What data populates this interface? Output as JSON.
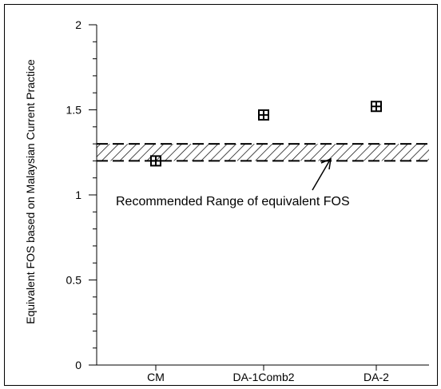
{
  "chart_data": {
    "type": "scatter",
    "title": "",
    "xlabel": "",
    "ylabel": "Equivalent FOS based on Malaysian Current Practice",
    "categories": [
      "CM",
      "DA-1Comb2",
      "DA-2"
    ],
    "values": [
      1.2,
      1.47,
      1.52
    ],
    "ylim": [
      0,
      2
    ],
    "yticks": [
      "0",
      "0.5",
      "1",
      "1.5",
      "2"
    ],
    "recommended_range": {
      "lower": 1.2,
      "upper": 1.3
    },
    "annotation": "Recommended Range of equivalent FOS",
    "grid": false,
    "legend": "none"
  }
}
